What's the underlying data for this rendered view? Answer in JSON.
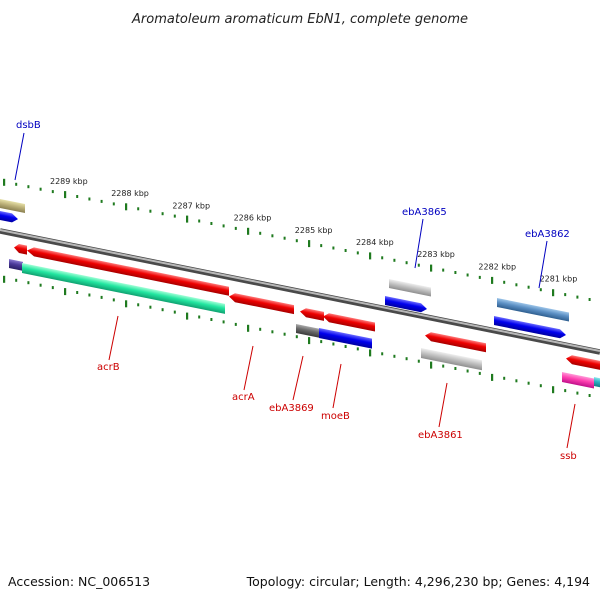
{
  "title": "Aromatoleum aromaticum EbN1, complete genome",
  "footer": {
    "accession": "Accession: NC_006513",
    "summary": "Topology: circular; Length: 4,296,230 bp; Genes: 4,194"
  },
  "colors": {
    "backbone": "#8a8a8a",
    "tick": "#1f7a1f",
    "label_forward": "#0000c0",
    "label_reverse": "#cc0000"
  },
  "ticks": [
    "2289 kbp",
    "2288 kbp",
    "2287 kbp",
    "2286 kbp",
    "2285 kbp",
    "2284 kbp",
    "2283 kbp",
    "2282 kbp",
    "2281 kbp"
  ],
  "genes": [
    {
      "label": "dsbB",
      "strand": "forward"
    },
    {
      "label": "ebA3865",
      "strand": "forward"
    },
    {
      "label": "ebA3862",
      "strand": "forward"
    },
    {
      "label": "acrB",
      "strand": "reverse"
    },
    {
      "label": "acrA",
      "strand": "reverse"
    },
    {
      "label": "ebA3869",
      "strand": "reverse"
    },
    {
      "label": "moeB",
      "strand": "reverse"
    },
    {
      "label": "ebA3861",
      "strand": "reverse"
    },
    {
      "label": "ssb",
      "strand": "reverse"
    }
  ]
}
